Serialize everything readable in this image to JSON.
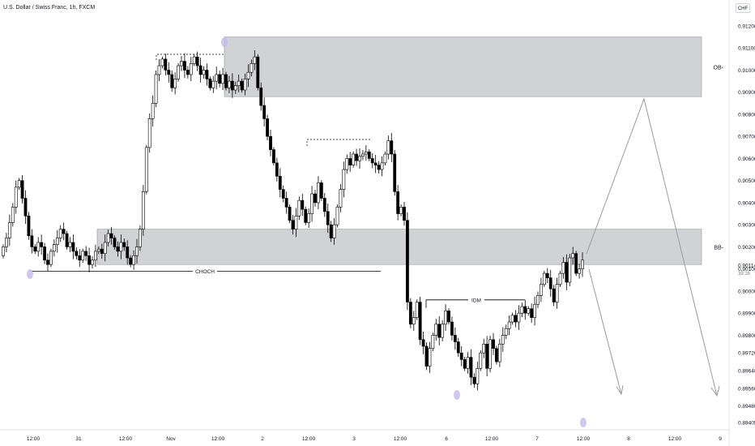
{
  "header": {
    "title": "U.S. Dollar / Swiss Franc, 1h, FXCM",
    "currency": "CHF"
  },
  "axes": {
    "price_ticks": [
      "0.91200",
      "0.91100",
      "0.91000",
      "0.90900",
      "0.90800",
      "0.90700",
      "0.90600",
      "0.90500",
      "0.90400",
      "0.90300",
      "0.90200",
      "0.90100",
      "0.90000",
      "0.89900",
      "0.89800",
      "0.89720",
      "0.89640",
      "0.89560",
      "0.89480",
      "0.89405"
    ],
    "price_tick_values": [
      0.912,
      0.911,
      0.91,
      0.909,
      0.908,
      0.907,
      0.906,
      0.905,
      0.904,
      0.903,
      0.902,
      0.901,
      0.9,
      0.899,
      0.898,
      0.8972,
      0.8964,
      0.8956,
      0.8948,
      0.89405
    ],
    "time_ticks": [
      "12:00",
      "31",
      "12:00",
      "Nov",
      "12:00",
      "2",
      "12:00",
      "3",
      "12:00",
      "6",
      "12:00",
      "7",
      "12:00",
      "8",
      "12:00",
      "9"
    ],
    "current_price": "0.90114",
    "countdown": "39:16"
  },
  "labels": {
    "choch": "CHOCH",
    "idm": "IDM",
    "ob": "OB-",
    "bb": "BB-"
  },
  "colors": {
    "up": "#ffffff",
    "down": "#000000",
    "zone": "#d1d2d6",
    "zone_border": "#9598a1",
    "projection": "#9a9a9a",
    "swing_marker": "#c6b8e8"
  },
  "chart_data": {
    "type": "candlestick",
    "title": "U.S. Dollar / Swiss Franc, 1h, FXCM",
    "x_unit": "hour",
    "ylim": [
      0.89405,
      0.912
    ],
    "zones": [
      {
        "label": "OB-",
        "low": 0.9088,
        "high": 0.9115
      },
      {
        "label": "BB-",
        "low": 0.9012,
        "high": 0.9028
      }
    ],
    "levels": [
      {
        "label": "CHOCH",
        "price": 0.9009
      },
      {
        "label": "IDM",
        "price": 0.8996
      }
    ],
    "path_points": [
      0.902,
      0.9024,
      0.9031,
      0.9038,
      0.9047,
      0.905,
      0.9042,
      0.9034,
      0.9025,
      0.902,
      0.9018,
      0.9022,
      0.902,
      0.9014,
      0.9012,
      0.9018,
      0.9021,
      0.9024,
      0.9028,
      0.9026,
      0.902,
      0.9022,
      0.9018,
      0.9016,
      0.9014,
      0.9018,
      0.9016,
      0.9012,
      0.9014,
      0.9018,
      0.9019,
      0.9017,
      0.9022,
      0.9026,
      0.9024,
      0.902,
      0.9018,
      0.9022,
      0.902,
      0.9015,
      0.9012,
      0.9016,
      0.902,
      0.9028,
      0.9045,
      0.9065,
      0.9078,
      0.9085,
      0.9098,
      0.9102,
      0.9105,
      0.91,
      0.9098,
      0.9092,
      0.9096,
      0.9102,
      0.9104,
      0.91,
      0.9098,
      0.9103,
      0.9106,
      0.9102,
      0.9098,
      0.91,
      0.9096,
      0.9092,
      0.9095,
      0.9098,
      0.9094,
      0.9098,
      0.9092,
      0.9095,
      0.9091,
      0.9093,
      0.9095,
      0.9091,
      0.9096,
      0.9099,
      0.9103,
      0.9106,
      0.9092,
      0.9084,
      0.9078,
      0.907,
      0.9064,
      0.9058,
      0.9052,
      0.9046,
      0.9042,
      0.9038,
      0.9032,
      0.9028,
      0.9034,
      0.9041,
      0.9037,
      0.9031,
      0.9035,
      0.9044,
      0.904,
      0.9049,
      0.9042,
      0.9036,
      0.903,
      0.9024,
      0.903,
      0.9038,
      0.9046,
      0.9055,
      0.906,
      0.9057,
      0.9062,
      0.9059,
      0.9061,
      0.9062,
      0.9063,
      0.906,
      0.9058,
      0.9057,
      0.9055,
      0.9058,
      0.9062,
      0.9068,
      0.9062,
      0.9045,
      0.9035,
      0.9038,
      0.9032,
      0.8995,
      0.8985,
      0.8988,
      0.8995,
      0.8978,
      0.8975,
      0.8966,
      0.8974,
      0.898,
      0.8985,
      0.8979,
      0.8985,
      0.8991,
      0.8986,
      0.898,
      0.8977,
      0.8972,
      0.8969,
      0.8965,
      0.897,
      0.8961,
      0.8958,
      0.8965,
      0.8972,
      0.8976,
      0.8965,
      0.8978,
      0.8974,
      0.8968,
      0.8976,
      0.898,
      0.8983,
      0.8986,
      0.8989,
      0.8986,
      0.899,
      0.8993,
      0.899,
      0.8992,
      0.8988,
      0.8994,
      0.8998,
      0.9003,
      0.9008,
      0.9006,
      0.9001,
      0.8995,
      0.9003,
      0.9008,
      0.9013,
      0.9004,
      0.9015,
      0.9017,
      0.9008,
      0.901,
      0.9014
    ]
  }
}
